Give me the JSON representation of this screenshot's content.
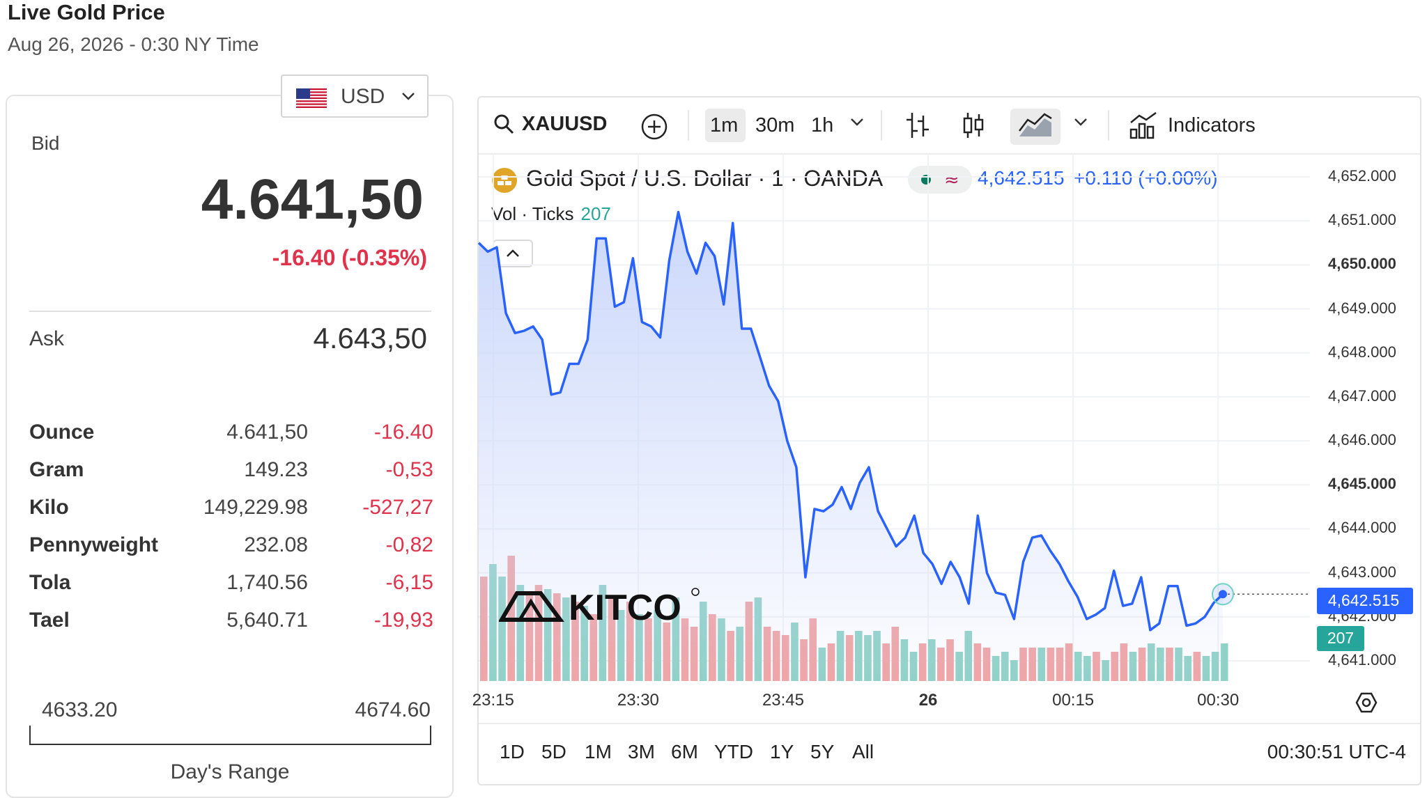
{
  "page": {
    "title": "Live Gold Price",
    "subtitle": "Aug 26, 2026 - 0:30 NY Time"
  },
  "currency": {
    "selected": "USD",
    "flag_icon": "us-flag-icon"
  },
  "quote": {
    "bid_label": "Bid",
    "bid": "4.641,50",
    "change": "-16.40 (-0.35%)",
    "ask_label": "Ask",
    "ask": "4.643,50"
  },
  "units": [
    {
      "name": "Ounce",
      "price": "4.641,50",
      "change": "-16.40"
    },
    {
      "name": "Gram",
      "price": "149.23",
      "change": "-0,53"
    },
    {
      "name": "Kilo",
      "price": "149,229.98",
      "change": "-527,27"
    },
    {
      "name": "Pennyweight",
      "price": "232.08",
      "change": "-0,82"
    },
    {
      "name": "Tola",
      "price": "1,740.56",
      "change": "-6,15"
    },
    {
      "name": "Tael",
      "price": "5,640.71",
      "change": "-19,93"
    }
  ],
  "day_range": {
    "low": "4633.20",
    "high": "4674.60",
    "label": "Day's Range"
  },
  "toolbar": {
    "symbol": "XAUUSD",
    "intervals": [
      "1m",
      "30m",
      "1h"
    ],
    "active_interval": "1m",
    "indicators_label": "Indicators"
  },
  "legend": {
    "title": "Gold Spot / U.S. Dollar · 1 · OANDA",
    "price": "4,642.515",
    "change": "+0.110 (+0.00%)",
    "vol_label": "Vol · Ticks",
    "vol_value": "207"
  },
  "price_tag": "4,642.515",
  "volume_tag": "207",
  "range_buttons": [
    "1D",
    "5D",
    "1M",
    "3M",
    "6M",
    "YTD",
    "1Y",
    "5Y",
    "All"
  ],
  "clock": "00:30:51 UTC-4",
  "logo_text": "KITCO",
  "colors": {
    "line": "#2962ff",
    "area_top": "#c9d6fb",
    "vol_up": "#8fd1c6",
    "vol_down": "#f0a3a3",
    "negative": "#e0324a"
  },
  "chart_data": {
    "type": "line",
    "title": "Gold Spot / U.S. Dollar · 1 · OANDA",
    "y_ticks": [
      "4,652.000",
      "4,651.000",
      "4,650.000",
      "4,649.000",
      "4,648.000",
      "4,647.000",
      "4,646.000",
      "4,645.000",
      "4,644.000",
      "4,643.000",
      "4,642.000",
      "4,641.000"
    ],
    "y_bold": [
      "4,650.000",
      "4,645.000"
    ],
    "ylim": [
      4640.7,
      4652.3
    ],
    "x_ticks": [
      "23:15",
      "23:30",
      "23:45",
      "26",
      "00:15",
      "00:30"
    ],
    "x_bold": [
      "26"
    ],
    "x_range_minutes": [
      -16.5,
      69.5
    ],
    "price_series": [
      4650.5,
      4650.3,
      4650.4,
      4648.9,
      4648.45,
      4648.5,
      4648.6,
      4648.3,
      4647.05,
      4647.1,
      4647.75,
      4647.75,
      4648.3,
      4650.6,
      4650.6,
      4649.05,
      4649.15,
      4650.15,
      4648.7,
      4648.6,
      4648.35,
      4650.1,
      4651.2,
      4650.3,
      4649.8,
      4650.5,
      4650.2,
      4649.1,
      4650.95,
      4648.55,
      4648.55,
      4647.9,
      4647.25,
      4646.9,
      4646.0,
      4645.4,
      4642.9,
      4644.45,
      4644.4,
      4644.55,
      4644.95,
      4644.45,
      4645.05,
      4645.4,
      4644.4,
      4644.0,
      4643.6,
      4643.8,
      4644.3,
      4643.45,
      4643.2,
      4642.75,
      4643.25,
      4642.9,
      4642.3,
      4644.3,
      4643.0,
      4642.55,
      4642.5,
      4641.95,
      4643.25,
      4643.8,
      4643.85,
      4643.5,
      4643.2,
      4642.8,
      4642.45,
      4641.95,
      4642.05,
      4642.2,
      4643.05,
      4642.25,
      4642.3,
      4642.9,
      4641.7,
      4641.85,
      4642.7,
      4642.7,
      4641.8,
      4641.85,
      4642.0,
      4642.32,
      4642.515
    ],
    "volume_series": [
      {
        "v": 250,
        "up": false
      },
      {
        "v": 280,
        "up": true
      },
      {
        "v": 250,
        "up": true
      },
      {
        "v": 300,
        "up": false
      },
      {
        "v": 230,
        "up": true
      },
      {
        "v": 210,
        "up": false
      },
      {
        "v": 230,
        "up": false
      },
      {
        "v": 220,
        "up": true
      },
      {
        "v": 210,
        "up": false
      },
      {
        "v": 200,
        "up": true
      },
      {
        "v": 190,
        "up": false
      },
      {
        "v": 180,
        "up": true
      },
      {
        "v": 160,
        "up": false
      },
      {
        "v": 230,
        "up": true
      },
      {
        "v": 200,
        "up": false
      },
      {
        "v": 170,
        "up": true
      },
      {
        "v": 190,
        "up": false
      },
      {
        "v": 160,
        "up": true
      },
      {
        "v": 150,
        "up": false
      },
      {
        "v": 170,
        "up": true
      },
      {
        "v": 140,
        "up": false
      },
      {
        "v": 200,
        "up": true
      },
      {
        "v": 150,
        "up": false
      },
      {
        "v": 130,
        "up": false
      },
      {
        "v": 190,
        "up": true
      },
      {
        "v": 160,
        "up": false
      },
      {
        "v": 150,
        "up": true
      },
      {
        "v": 120,
        "up": false
      },
      {
        "v": 130,
        "up": true
      },
      {
        "v": 190,
        "up": false
      },
      {
        "v": 200,
        "up": true
      },
      {
        "v": 130,
        "up": false
      },
      {
        "v": 120,
        "up": false
      },
      {
        "v": 110,
        "up": false
      },
      {
        "v": 140,
        "up": true
      },
      {
        "v": 100,
        "up": false
      },
      {
        "v": 150,
        "up": false
      },
      {
        "v": 80,
        "up": true
      },
      {
        "v": 90,
        "up": false
      },
      {
        "v": 120,
        "up": true
      },
      {
        "v": 110,
        "up": false
      },
      {
        "v": 120,
        "up": true
      },
      {
        "v": 110,
        "up": true
      },
      {
        "v": 120,
        "up": true
      },
      {
        "v": 90,
        "up": false
      },
      {
        "v": 130,
        "up": false
      },
      {
        "v": 100,
        "up": true
      },
      {
        "v": 70,
        "up": true
      },
      {
        "v": 90,
        "up": false
      },
      {
        "v": 100,
        "up": true
      },
      {
        "v": 80,
        "up": false
      },
      {
        "v": 100,
        "up": false
      },
      {
        "v": 70,
        "up": true
      },
      {
        "v": 120,
        "up": true
      },
      {
        "v": 90,
        "up": false
      },
      {
        "v": 80,
        "up": false
      },
      {
        "v": 60,
        "up": true
      },
      {
        "v": 70,
        "up": true
      },
      {
        "v": 50,
        "up": true
      },
      {
        "v": 80,
        "up": false
      },
      {
        "v": 80,
        "up": false
      },
      {
        "v": 80,
        "up": true
      },
      {
        "v": 80,
        "up": false
      },
      {
        "v": 80,
        "up": false
      },
      {
        "v": 90,
        "up": false
      },
      {
        "v": 70,
        "up": true
      },
      {
        "v": 60,
        "up": true
      },
      {
        "v": 70,
        "up": false
      },
      {
        "v": 50,
        "up": true
      },
      {
        "v": 70,
        "up": false
      },
      {
        "v": 90,
        "up": false
      },
      {
        "v": 70,
        "up": true
      },
      {
        "v": 80,
        "up": false
      },
      {
        "v": 90,
        "up": true
      },
      {
        "v": 80,
        "up": true
      },
      {
        "v": 80,
        "up": false
      },
      {
        "v": 80,
        "up": true
      },
      {
        "v": 60,
        "up": true
      },
      {
        "v": 70,
        "up": false
      },
      {
        "v": 60,
        "up": true
      },
      {
        "v": 70,
        "up": true
      },
      {
        "v": 90,
        "up": true
      }
    ]
  }
}
